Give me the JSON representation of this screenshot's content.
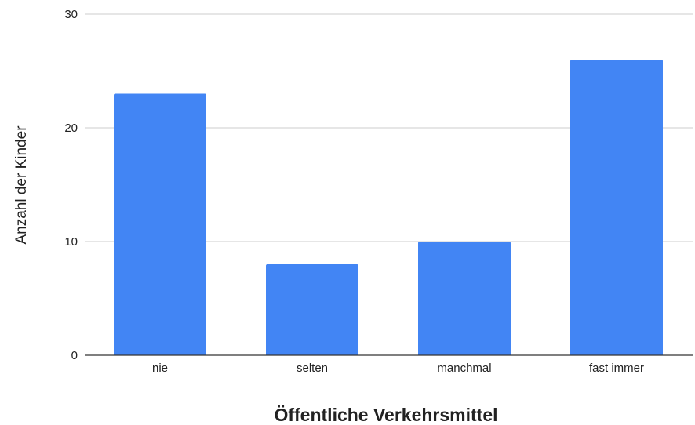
{
  "chart_data": {
    "type": "bar",
    "categories": [
      "nie",
      "selten",
      "manchmal",
      "fast immer"
    ],
    "values": [
      23,
      8,
      10,
      26
    ],
    "title": "",
    "xlabel": "Öffentliche Verkehrsmittel",
    "ylabel": "Anzahl der Kinder",
    "ylim": [
      0,
      30
    ],
    "yticks": [
      "0",
      "10",
      "20",
      "30"
    ],
    "grid": true,
    "legend": "none",
    "bar_color": "#4285F4",
    "grid_color": "#cccccc",
    "axis_color": "#333333"
  }
}
